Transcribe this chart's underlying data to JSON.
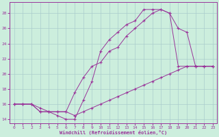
{
  "bg_color": "#cceedd",
  "grid_color": "#aacccc",
  "line_color": "#993399",
  "xlim": [
    -0.5,
    23.5
  ],
  "ylim": [
    13.5,
    29.5
  ],
  "yticks": [
    14,
    16,
    18,
    20,
    22,
    24,
    26,
    28
  ],
  "xticks": [
    0,
    1,
    2,
    3,
    4,
    5,
    6,
    7,
    8,
    9,
    10,
    11,
    12,
    13,
    14,
    15,
    16,
    17,
    18,
    19,
    20,
    21,
    22,
    23
  ],
  "xlabel": "Windchill (Refroidissement éolien,°C)",
  "series": [
    {
      "x": [
        0,
        1,
        2,
        3,
        4,
        5,
        6,
        7,
        8,
        9,
        10,
        11,
        12,
        13,
        14,
        15,
        16,
        17,
        18,
        19,
        20,
        21,
        22,
        23
      ],
      "y": [
        16,
        16,
        16,
        15,
        15,
        15,
        15,
        14.5,
        15,
        15.5,
        16,
        16.5,
        17,
        17.5,
        18,
        18.5,
        19,
        19.5,
        20,
        20.5,
        21,
        21,
        21,
        21
      ]
    },
    {
      "x": [
        0,
        1,
        2,
        3,
        4,
        5,
        6,
        7,
        8,
        9,
        10,
        11,
        12,
        13,
        14,
        15,
        16,
        17,
        18,
        19,
        20,
        21,
        22,
        23
      ],
      "y": [
        16,
        16,
        16,
        15,
        15,
        15,
        15,
        17.5,
        19.5,
        21,
        21.5,
        23,
        23.5,
        25,
        26,
        27,
        28,
        28.5,
        28,
        26,
        25.5,
        21,
        21,
        21
      ]
    },
    {
      "x": [
        0,
        1,
        2,
        3,
        4,
        5,
        6,
        7,
        8,
        9,
        10,
        11,
        12,
        13,
        14,
        15,
        16,
        17,
        18,
        19,
        20,
        21,
        22,
        23
      ],
      "y": [
        16,
        16,
        16,
        15.5,
        15,
        14.5,
        14,
        14,
        16.5,
        19,
        23,
        24.5,
        25.5,
        26.5,
        27,
        28.5,
        28.5,
        28.5,
        28,
        21,
        21,
        21,
        21,
        21
      ]
    }
  ]
}
